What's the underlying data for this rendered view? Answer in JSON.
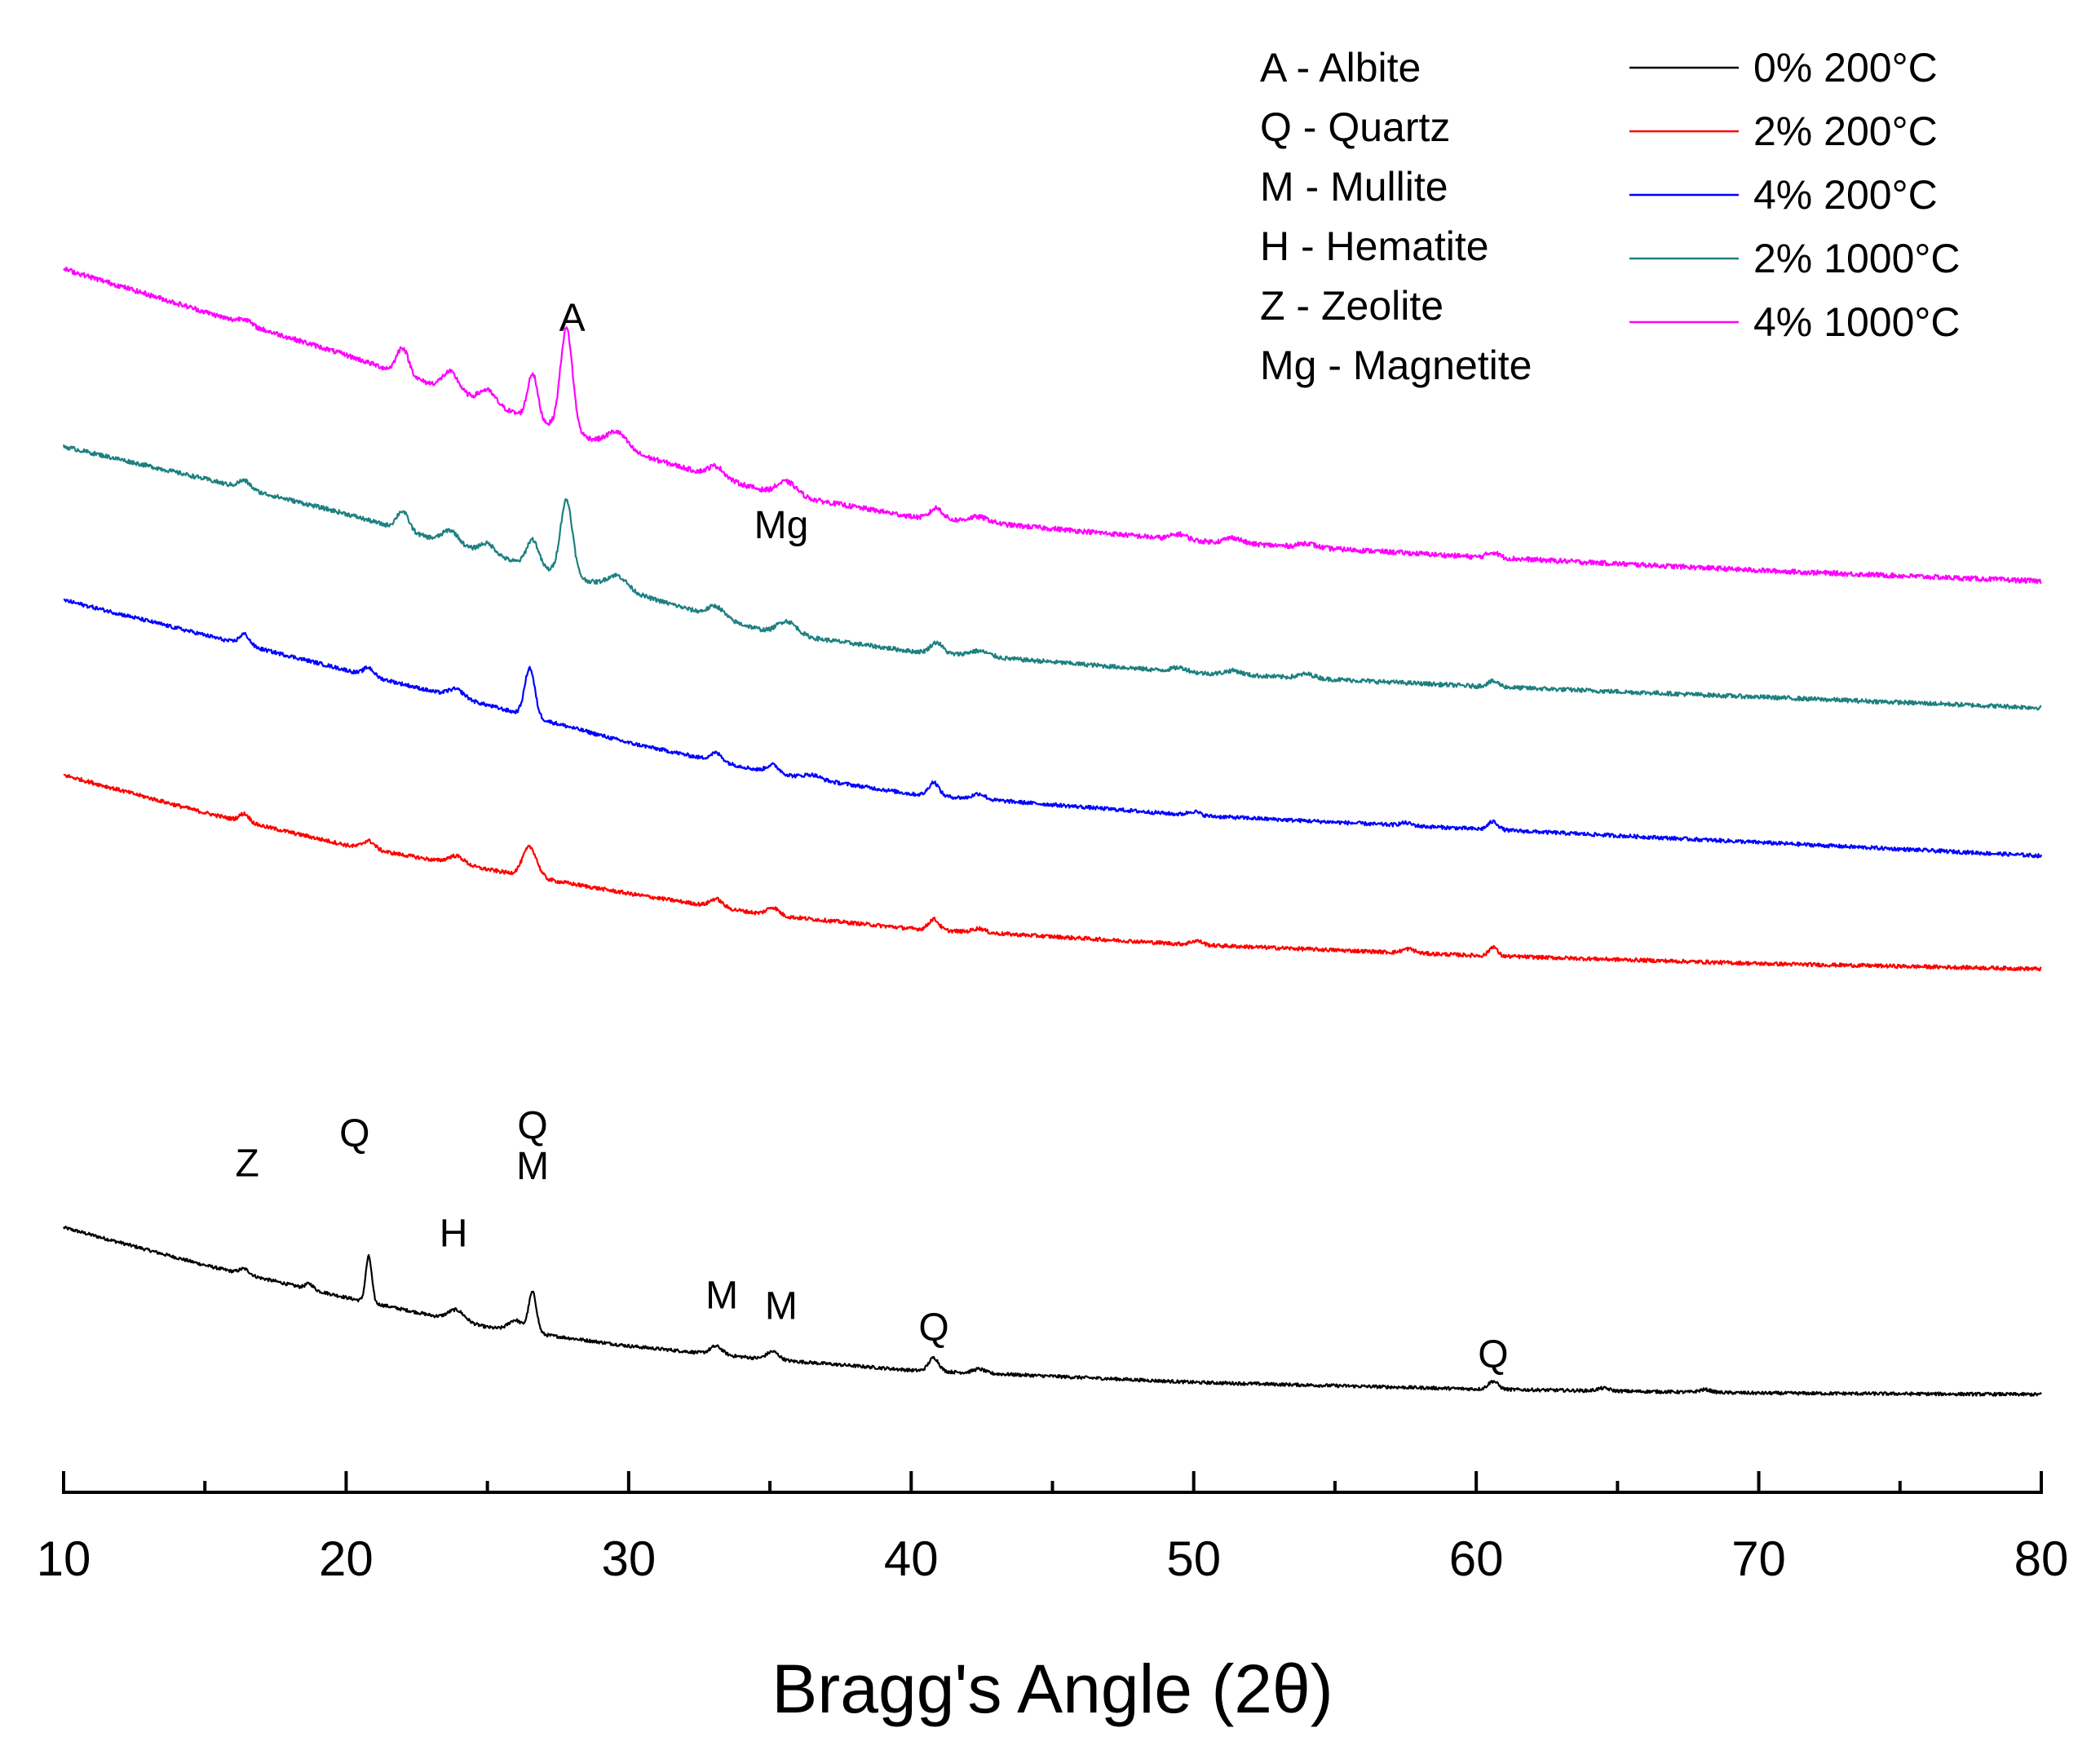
{
  "chart_data": {
    "type": "line",
    "title": "",
    "xlabel": "Bragg's Angle (2θ)",
    "ylabel": "",
    "xlim": [
      10,
      80
    ],
    "xticks": [
      10,
      20,
      30,
      40,
      50,
      60,
      70,
      80
    ],
    "y_axis_shown": false,
    "grid": false,
    "legend_position": "top-right",
    "phase_key": [
      {
        "code": "A",
        "label": "A - Albite"
      },
      {
        "code": "Q",
        "label": "Q - Quartz"
      },
      {
        "code": "M",
        "label": "M - Mullite"
      },
      {
        "code": "H",
        "label": "H - Hematite"
      },
      {
        "code": "Z",
        "label": "Z - Zeolite"
      },
      {
        "code": "Mg",
        "label": "Mg - Magnetite"
      }
    ],
    "series": [
      {
        "name": "0% 200°C",
        "color": "#000000",
        "baseline": [
          [
            10,
            0.62
          ],
          [
            15,
            0.48
          ],
          [
            20,
            0.36
          ],
          [
            25,
            0.25
          ],
          [
            30,
            0.18
          ],
          [
            35,
            0.13
          ],
          [
            40,
            0.09
          ],
          [
            50,
            0.045
          ],
          [
            60,
            0.02
          ],
          [
            70,
            0.005
          ],
          [
            80,
            0.0
          ]
        ],
        "peaks": [
          [
            16.4,
            0.02,
            0.25
          ],
          [
            18.7,
            0.02,
            0.2
          ],
          [
            20.8,
            0.17,
            0.15
          ],
          [
            23.9,
            0.04,
            0.4
          ],
          [
            26.0,
            0.04,
            0.35
          ],
          [
            26.6,
            0.15,
            0.2
          ],
          [
            33.1,
            0.03,
            0.3
          ],
          [
            35.1,
            0.03,
            0.3
          ],
          [
            40.8,
            0.05,
            0.25
          ],
          [
            42.4,
            0.015,
            0.3
          ],
          [
            60.6,
            0.03,
            0.25
          ],
          [
            64.5,
            0.01,
            0.3
          ],
          [
            68.1,
            0.01,
            0.3
          ]
        ],
        "noise": 0.006
      },
      {
        "name": "2% 200°C",
        "color": "#ff0000",
        "baseline": [
          [
            10,
            2.3
          ],
          [
            15,
            2.16
          ],
          [
            20,
            2.04
          ],
          [
            25,
            1.95
          ],
          [
            30,
            1.86
          ],
          [
            35,
            1.78
          ],
          [
            40,
            1.73
          ],
          [
            50,
            1.67
          ],
          [
            60,
            1.63
          ],
          [
            70,
            1.6
          ],
          [
            80,
            1.58
          ]
        ],
        "peaks": [
          [
            16.4,
            0.03,
            0.25
          ],
          [
            20.8,
            0.03,
            0.3
          ],
          [
            23.9,
            0.03,
            0.4
          ],
          [
            26.5,
            0.11,
            0.35
          ],
          [
            33.1,
            0.03,
            0.3
          ],
          [
            35.1,
            0.03,
            0.3
          ],
          [
            40.8,
            0.04,
            0.25
          ],
          [
            42.4,
            0.015,
            0.3
          ],
          [
            50.1,
            0.015,
            0.3
          ],
          [
            57.6,
            0.015,
            0.3
          ],
          [
            60.6,
            0.035,
            0.2
          ]
        ],
        "noise": 0.007
      },
      {
        "name": "4% 200°C",
        "color": "#0000ff",
        "baseline": [
          [
            10,
            2.95
          ],
          [
            15,
            2.82
          ],
          [
            20,
            2.69
          ],
          [
            25,
            2.56
          ],
          [
            30,
            2.42
          ],
          [
            35,
            2.31
          ],
          [
            40,
            2.23
          ],
          [
            50,
            2.15
          ],
          [
            60,
            2.1
          ],
          [
            70,
            2.05
          ],
          [
            80,
            2.0
          ]
        ],
        "peaks": [
          [
            16.4,
            0.04,
            0.25
          ],
          [
            20.8,
            0.03,
            0.25
          ],
          [
            23.9,
            0.03,
            0.4
          ],
          [
            26.5,
            0.18,
            0.25
          ],
          [
            33.1,
            0.03,
            0.3
          ],
          [
            35.1,
            0.03,
            0.3
          ],
          [
            36.5,
            0.015,
            0.4
          ],
          [
            40.8,
            0.05,
            0.25
          ],
          [
            42.4,
            0.02,
            0.3
          ],
          [
            50.0,
            0.015,
            0.3
          ],
          [
            57.5,
            0.01,
            0.3
          ],
          [
            60.6,
            0.03,
            0.25
          ]
        ],
        "noise": 0.007
      },
      {
        "name": "2% 1000°C",
        "color": "#1e8080",
        "baseline": [
          [
            10,
            3.52
          ],
          [
            15,
            3.4
          ],
          [
            20,
            3.27
          ],
          [
            25,
            3.12
          ],
          [
            30,
            2.98
          ],
          [
            35,
            2.83
          ],
          [
            40,
            2.76
          ],
          [
            50,
            2.68
          ],
          [
            60,
            2.63
          ],
          [
            70,
            2.59
          ],
          [
            80,
            2.55
          ]
        ],
        "peaks": [
          [
            16.4,
            0.03,
            0.3
          ],
          [
            22.0,
            0.07,
            0.3
          ],
          [
            23.7,
            0.05,
            0.4
          ],
          [
            25.0,
            0.04,
            0.4
          ],
          [
            26.6,
            0.1,
            0.3
          ],
          [
            27.8,
            0.28,
            0.3
          ],
          [
            29.6,
            0.05,
            0.5
          ],
          [
            33.1,
            0.04,
            0.4
          ],
          [
            35.6,
            0.05,
            0.5
          ],
          [
            40.9,
            0.04,
            0.3
          ],
          [
            42.4,
            0.02,
            0.5
          ],
          [
            49.5,
            0.015,
            0.4
          ],
          [
            51.4,
            0.015,
            0.4
          ],
          [
            54.0,
            0.015,
            0.4
          ],
          [
            60.6,
            0.02,
            0.3
          ]
        ],
        "noise": 0.008
      },
      {
        "name": "4% 1000°C",
        "color": "#ff00ff",
        "baseline": [
          [
            10,
            4.18
          ],
          [
            15,
            4.02
          ],
          [
            20,
            3.86
          ],
          [
            25,
            3.68
          ],
          [
            30,
            3.5
          ],
          [
            35,
            3.35
          ],
          [
            40,
            3.26
          ],
          [
            50,
            3.17
          ],
          [
            60,
            3.11
          ],
          [
            70,
            3.06
          ],
          [
            80,
            3.02
          ]
        ],
        "peaks": [
          [
            16.4,
            0.02,
            0.3
          ],
          [
            22.0,
            0.1,
            0.3
          ],
          [
            23.7,
            0.07,
            0.4
          ],
          [
            25.0,
            0.05,
            0.4
          ],
          [
            26.6,
            0.17,
            0.25
          ],
          [
            27.8,
            0.38,
            0.3
          ],
          [
            29.6,
            0.06,
            0.5
          ],
          [
            33.1,
            0.04,
            0.4
          ],
          [
            35.6,
            0.05,
            0.5
          ],
          [
            40.9,
            0.04,
            0.3
          ],
          [
            42.4,
            0.02,
            0.5
          ],
          [
            49.5,
            0.02,
            0.4
          ],
          [
            51.4,
            0.02,
            0.4
          ],
          [
            54.0,
            0.015,
            0.4
          ],
          [
            60.6,
            0.02,
            0.3
          ]
        ],
        "noise": 0.009
      }
    ],
    "annotations": [
      {
        "text": "Z",
        "x": 16.5,
        "y": 0.81
      },
      {
        "text": "Q",
        "x": 20.3,
        "y": 0.92
      },
      {
        "text": "H",
        "x": 23.8,
        "y": 0.55
      },
      {
        "text": "Q",
        "x": 26.6,
        "y": 0.95
      },
      {
        "text": "M",
        "x": 26.6,
        "y": 0.8
      },
      {
        "text": "M",
        "x": 33.3,
        "y": 0.32
      },
      {
        "text": "M",
        "x": 35.4,
        "y": 0.28
      },
      {
        "text": "Q",
        "x": 40.8,
        "y": 0.2
      },
      {
        "text": "Q",
        "x": 60.6,
        "y": 0.1
      },
      {
        "text": "A",
        "x": 28.0,
        "y": 3.95
      },
      {
        "text": "Mg",
        "x": 35.4,
        "y": 3.18
      }
    ]
  }
}
